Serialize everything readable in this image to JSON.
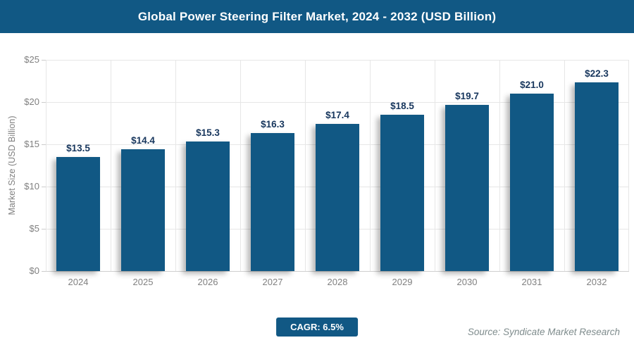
{
  "header": {
    "title": "Global Power Steering Filter Market, 2024 - 2032 (USD Billion)",
    "bg_color": "#115884",
    "text_color": "#ffffff"
  },
  "chart_data": {
    "type": "bar",
    "title": "Global Power Steering Filter Market, 2024 - 2032 (USD Billion)",
    "categories": [
      "2024",
      "2025",
      "2026",
      "2027",
      "2028",
      "2029",
      "2030",
      "2031",
      "2032"
    ],
    "values": [
      13.5,
      14.4,
      15.3,
      16.3,
      17.4,
      18.5,
      19.7,
      21.0,
      22.3
    ],
    "bar_labels": [
      "$13.5",
      "$14.4",
      "$15.3",
      "$16.3",
      "$17.4",
      "$18.5",
      "$19.7",
      "$21.0",
      "$22.3"
    ],
    "xlabel": "",
    "ylabel": "Market Size (USD Billion)",
    "ylim": [
      0,
      25
    ],
    "ytick_step": 5,
    "ytick_labels": [
      "$0",
      "$5",
      "$10",
      "$15",
      "$20",
      "$25"
    ],
    "grid": true,
    "legend": "none",
    "bar_color": "#115884",
    "bar_label_color": "#17365d",
    "axis_text_color": "#808080"
  },
  "footer": {
    "cagr_label": "CAGR: 6.5%",
    "source": "Source: Syndicate Market Research"
  }
}
